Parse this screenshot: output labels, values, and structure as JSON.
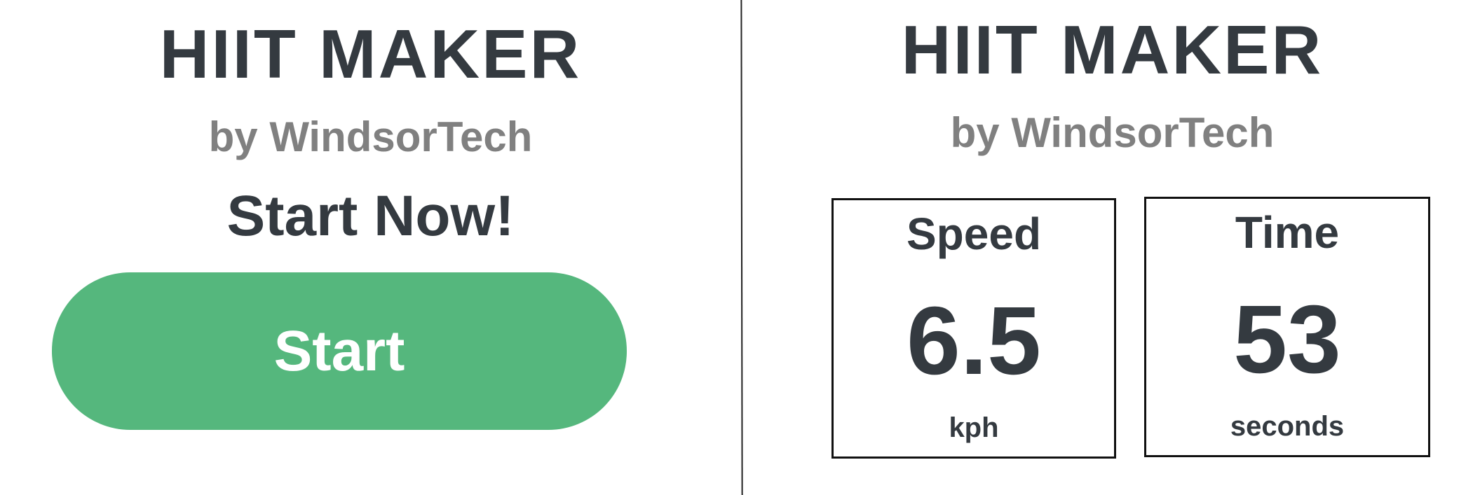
{
  "left_panel": {
    "title": "HIIT MAKER",
    "subtitle": "by WindsorTech",
    "call_to_action": "Start Now!",
    "start_button_label": "Start"
  },
  "right_panel": {
    "title": "HIIT MAKER",
    "subtitle": "by WindsorTech",
    "speed": {
      "label": "Speed",
      "value": "6.5",
      "unit": "kph"
    },
    "time": {
      "label": "Time",
      "value": "53",
      "unit": "seconds"
    }
  },
  "colors": {
    "primary_text": "#343a40",
    "secondary_text": "#808080",
    "button_background": "#55b77d",
    "button_text": "#ffffff",
    "box_border": "#111111"
  }
}
